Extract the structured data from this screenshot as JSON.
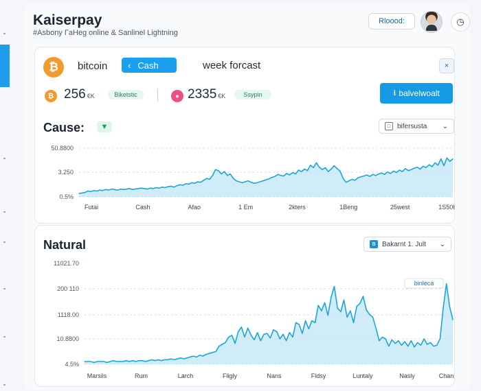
{
  "app": {
    "title": "Kaiserpay",
    "subtitle": "#Asbony ГaHeg online & Sanlinel Lightning",
    "top_button": "Rloood:",
    "top_icon": "◷"
  },
  "summary_card": {
    "coin_symbol": "₿",
    "coin_label": "bitcoin",
    "cash_button": "Cash",
    "cash_icon": "chevron-left-icon",
    "week_label": "week forcast",
    "close_icon": "×",
    "stat1": {
      "value": "256",
      "unit": "€K",
      "badge": "Biketstic"
    },
    "stat2": {
      "value": "2335",
      "unit": "€K",
      "badge": "Ssypin"
    },
    "action_button": "balvelwoalt",
    "action_icon": "download-icon"
  },
  "cause_chart": {
    "title": "Cause:",
    "badge_icon": "▼",
    "dropdown_label": "bifersusta",
    "y_ticks": [
      "50.8800",
      "3.250",
      "0.5%"
    ],
    "x_ticks": [
      "Futai",
      "Cash",
      "Afao",
      "1 Em",
      "2kters",
      "1Beng",
      "25west",
      "1S50Hon"
    ]
  },
  "natural_chart": {
    "title": "Natural",
    "dropdown_label": "Bakarnt 1. Jult",
    "y_ticks": [
      "11021.70",
      "200 110",
      "1118.00",
      "10.8800",
      "4.5%"
    ],
    "x_ticks": [
      "Marsils",
      "Rum",
      "Larch",
      "Fligly",
      "Nans",
      "Fldsy",
      "Luntaly",
      "Nasly",
      "Chanbon"
    ],
    "annotation": "binleca"
  },
  "colors": {
    "accent": "#1aa0ee",
    "line": "#1ba6d6",
    "fill": "#bfe6f6",
    "bitcoin": "#f39a2c",
    "pink": "#ee4f82"
  },
  "chart_data": [
    {
      "type": "area",
      "title": "Cause:",
      "y_ticks": [
        "50.8800",
        "3.250",
        "0.5%"
      ],
      "x_ticks": [
        "Futai",
        "Cash",
        "Afao",
        "1 Em",
        "2kters",
        "1Beng",
        "25west",
        "1S50Hon"
      ],
      "y_range": [
        0,
        100
      ],
      "values": [
        7,
        8,
        9,
        12,
        11,
        13,
        12,
        14,
        13,
        15,
        14,
        16,
        15,
        14,
        16,
        15,
        16,
        17,
        15,
        16,
        17,
        18,
        17,
        16,
        18,
        17,
        19,
        18,
        20,
        19,
        21,
        22,
        20,
        23,
        25,
        24,
        27,
        26,
        29,
        28,
        31,
        30,
        34,
        38,
        36,
        44,
        56,
        54,
        47,
        52,
        44,
        47,
        38,
        33,
        31,
        29,
        31,
        33,
        30,
        28,
        29,
        31,
        33,
        35,
        37,
        40,
        42,
        46,
        44,
        43,
        48,
        45,
        50,
        47,
        55,
        52,
        57,
        54,
        65,
        60,
        70,
        61,
        56,
        60,
        52,
        57,
        64,
        58,
        53,
        38,
        30,
        33,
        36,
        34,
        39,
        41,
        43,
        45,
        42,
        46,
        44,
        47,
        49,
        46,
        51,
        48,
        53,
        50,
        55,
        52,
        58,
        54,
        56,
        59,
        61,
        57,
        63,
        60,
        66,
        62,
        70,
        65,
        78,
        64,
        80,
        73,
        78
      ]
    },
    {
      "type": "area",
      "title": "Natural",
      "y_ticks": [
        "11021.70",
        "200 110",
        "1118.00",
        "10.8800",
        "4.5%"
      ],
      "x_ticks": [
        "Marsils",
        "Rum",
        "Larch",
        "Fligly",
        "Nans",
        "Fldsy",
        "Luntaly",
        "Nasly",
        "Chanbon"
      ],
      "y_range": [
        0,
        100
      ],
      "values": [
        3,
        3,
        3,
        2,
        3,
        3,
        3,
        2,
        3,
        4,
        3,
        3,
        3,
        4,
        3,
        4,
        3,
        4,
        4,
        3,
        4,
        5,
        4,
        5,
        4,
        5,
        5,
        6,
        5,
        6,
        7,
        6,
        7,
        8,
        9,
        8,
        10,
        9,
        11,
        12,
        13,
        14,
        20,
        22,
        24,
        30,
        32,
        23,
        36,
        41,
        30,
        40,
        32,
        27,
        35,
        26,
        33,
        34,
        29,
        38,
        36,
        28,
        33,
        26,
        35,
        30,
        46,
        44,
        34,
        48,
        39,
        48,
        46,
        65,
        59,
        68,
        54,
        74,
        86,
        62,
        58,
        71,
        52,
        59,
        46,
        64,
        67,
        75,
        60,
        55,
        52,
        40,
        26,
        30,
        28,
        20,
        27,
        23,
        26,
        21,
        25,
        20,
        26,
        19,
        24,
        21,
        28,
        22,
        24,
        20,
        21,
        28,
        62,
        89,
        64,
        49
      ]
    }
  ]
}
